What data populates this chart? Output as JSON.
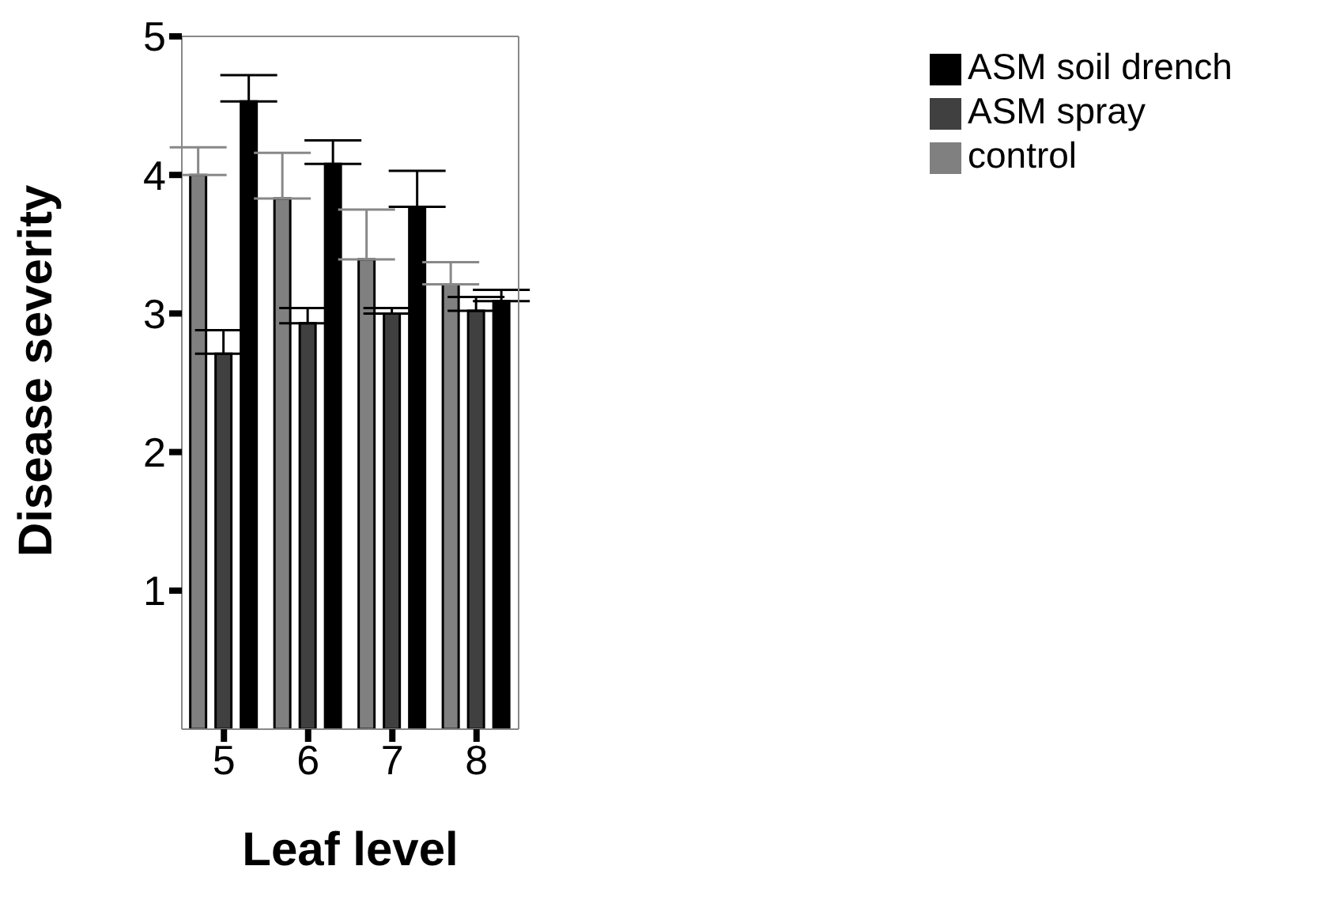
{
  "chart_data": {
    "type": "bar",
    "xlabel": "Leaf level",
    "ylabel": "Disease severity",
    "categories": [
      "5",
      "6",
      "7",
      "8"
    ],
    "series": [
      {
        "name": "control",
        "color": "#808080",
        "values": [
          4.0,
          3.83,
          3.39,
          3.21
        ],
        "errors": [
          [
            4.0,
            4.2
          ],
          [
            3.83,
            4.16
          ],
          [
            3.39,
            3.75
          ],
          [
            3.21,
            3.37
          ]
        ]
      },
      {
        "name": "ASM spray",
        "color": "#404040",
        "values": [
          2.71,
          2.93,
          3.0,
          3.02
        ],
        "errors": [
          [
            2.71,
            2.88
          ],
          [
            2.93,
            3.04
          ],
          [
            3.0,
            3.04
          ],
          [
            3.02,
            3.12
          ]
        ]
      },
      {
        "name": "ASM soil drench",
        "color": "#000000",
        "values": [
          4.53,
          4.08,
          3.77,
          3.09
        ],
        "errors": [
          [
            4.53,
            4.72
          ],
          [
            4.08,
            4.25
          ],
          [
            3.77,
            4.03
          ],
          [
            3.09,
            3.17
          ]
        ]
      }
    ],
    "ylim": [
      0,
      5
    ],
    "yticks": [
      1,
      2,
      3,
      4,
      5
    ],
    "grid": false,
    "legend": "top right"
  }
}
